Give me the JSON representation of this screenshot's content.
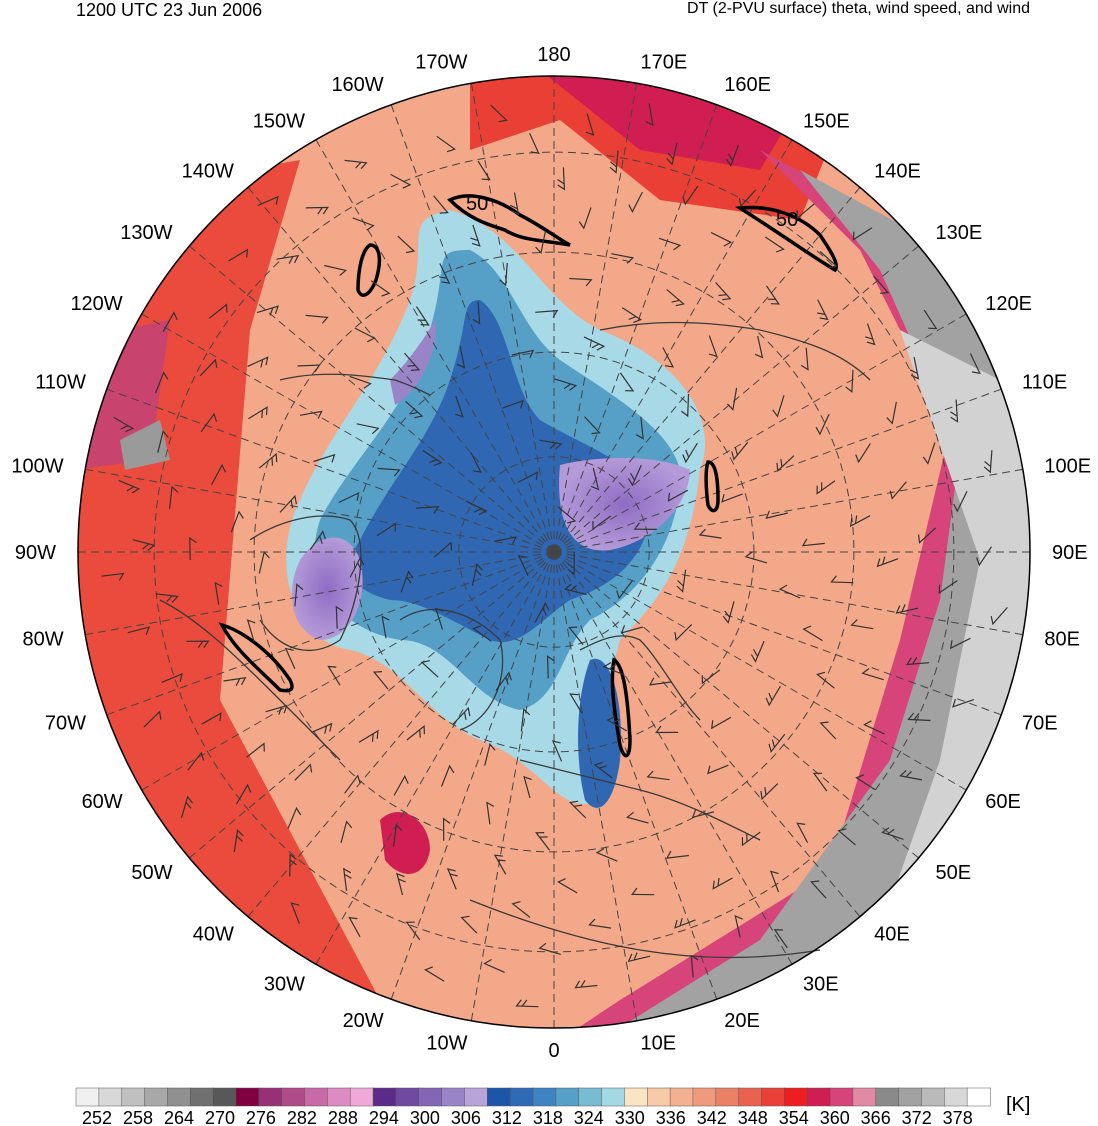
{
  "header": {
    "left": "1200 UTC 23 Jun 2006",
    "right": "DT (2-PVU surface) theta, wind speed, and wind"
  },
  "map": {
    "longitude_labels": [
      {
        "text": "180",
        "lon": 180
      },
      {
        "text": "170E",
        "lon": 170
      },
      {
        "text": "160E",
        "lon": 160
      },
      {
        "text": "150E",
        "lon": 150
      },
      {
        "text": "140E",
        "lon": 140
      },
      {
        "text": "130E",
        "lon": 130
      },
      {
        "text": "120E",
        "lon": 120
      },
      {
        "text": "110E",
        "lon": 110
      },
      {
        "text": "100E",
        "lon": 100
      },
      {
        "text": "90E",
        "lon": 90
      },
      {
        "text": "80E",
        "lon": 80
      },
      {
        "text": "70E",
        "lon": 70
      },
      {
        "text": "60E",
        "lon": 60
      },
      {
        "text": "50E",
        "lon": 50
      },
      {
        "text": "40E",
        "lon": 40
      },
      {
        "text": "30E",
        "lon": 30
      },
      {
        "text": "20E",
        "lon": 20
      },
      {
        "text": "10E",
        "lon": 10
      },
      {
        "text": "0",
        "lon": 0
      },
      {
        "text": "10W",
        "lon": -10
      },
      {
        "text": "20W",
        "lon": -20
      },
      {
        "text": "30W",
        "lon": -30
      },
      {
        "text": "40W",
        "lon": -40
      },
      {
        "text": "50W",
        "lon": -50
      },
      {
        "text": "60W",
        "lon": -60
      },
      {
        "text": "70W",
        "lon": -70
      },
      {
        "text": "80W",
        "lon": -80
      },
      {
        "text": "90W",
        "lon": -90
      },
      {
        "text": "100W",
        "lon": -100
      },
      {
        "text": "110W",
        "lon": -110
      },
      {
        "text": "120W",
        "lon": -120
      },
      {
        "text": "130W",
        "lon": -130
      },
      {
        "text": "140W",
        "lon": -140
      },
      {
        "text": "150W",
        "lon": -150
      },
      {
        "text": "160W",
        "lon": -160
      },
      {
        "text": "170W",
        "lon": -170
      }
    ],
    "wind_speed_contour_labels": [
      "50",
      "50"
    ],
    "colors": {
      "cold_core": "#a68ad0",
      "blue": "#2f67b3",
      "light_blue": "#a8d9e6",
      "peach": "#f6c6a0",
      "warm": "#ec8466",
      "red": "#e8302a",
      "magenta": "#c8436d",
      "gray": "#9a9a9a"
    }
  },
  "colorbar": {
    "tick_labels": [
      "252",
      "258",
      "264",
      "270",
      "276",
      "282",
      "288",
      "294",
      "300",
      "306",
      "312",
      "318",
      "324",
      "330",
      "336",
      "342",
      "348",
      "354",
      "360",
      "366",
      "372",
      "378"
    ],
    "colors": [
      "#f0f0f0",
      "#d8d8d8",
      "#c0c0c0",
      "#a8a8a8",
      "#909090",
      "#707070",
      "#585858",
      "#800040",
      "#983078",
      "#b04a88",
      "#c76aa6",
      "#dc8cc2",
      "#f0a8d8",
      "#5c2b8a",
      "#6f4aa0",
      "#8465b6",
      "#9a84c8",
      "#b8a4d8",
      "#1d56a8",
      "#2f6ab6",
      "#3f84c2",
      "#56a0c8",
      "#78bcd2",
      "#a4d8e2",
      "#fbe4c4",
      "#f8cba8",
      "#f4b192",
      "#ef9a7c",
      "#ea8066",
      "#e8624f",
      "#e9403a",
      "#ee1d22",
      "#d01e52",
      "#d6447a",
      "#e08aa5",
      "#8a8a8a",
      "#a2a2a2",
      "#bababa",
      "#d8d8d8",
      "#ffffff"
    ],
    "units": "[K]"
  }
}
